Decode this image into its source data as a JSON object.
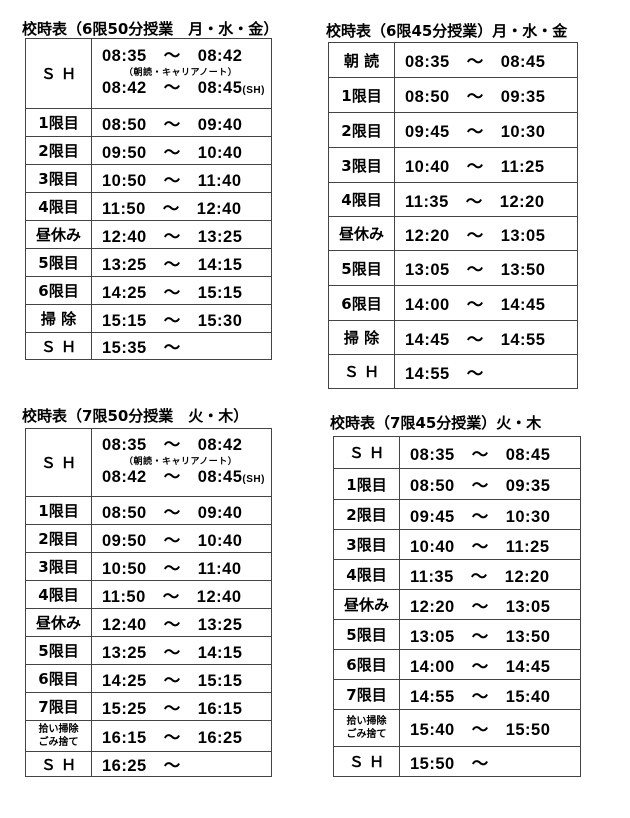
{
  "tables": [
    {
      "title": "校時表（6限50分授業　月・水・金）",
      "sh": {
        "label": "Ｓ Ｈ",
        "time1": "08:35　～　08:42",
        "note": "（朝読・キャリアノート）",
        "time2": "08:42　～　08:45",
        "time2_suffix": "(SH)"
      },
      "rows": [
        {
          "label": "1限目",
          "time": "08:50　～　09:40"
        },
        {
          "label": "2限目",
          "time": "09:50　～　10:40"
        },
        {
          "label": "3限目",
          "time": "10:50　～　11:40"
        },
        {
          "label": "4限目",
          "time": "11:50　～　12:40"
        },
        {
          "label": "昼休み",
          "time": "12:40　～　13:25"
        },
        {
          "label": "5限目",
          "time": "13:25　～　14:15"
        },
        {
          "label": "6限目",
          "time": "14:25　～　15:15"
        },
        {
          "label": "掃 除",
          "time": "15:15　～　15:30"
        },
        {
          "label": "Ｓ Ｈ",
          "time": "15:35　～"
        }
      ]
    },
    {
      "title": "校時表（6限45分授業）月・水・金",
      "rows": [
        {
          "label": "朝 読",
          "time": "08:35　～　08:45"
        },
        {
          "label": "1限目",
          "time": "08:50　～　09:35"
        },
        {
          "label": "2限目",
          "time": "09:45　～　10:30"
        },
        {
          "label": "3限目",
          "time": "10:40　～　11:25"
        },
        {
          "label": "4限目",
          "time": "11:35　～　12:20"
        },
        {
          "label": "昼休み",
          "time": "12:20　～　13:05"
        },
        {
          "label": "5限目",
          "time": "13:05　～　13:50"
        },
        {
          "label": "6限目",
          "time": "14:00　～　14:45"
        },
        {
          "label": "掃 除",
          "time": "14:45　～　14:55"
        },
        {
          "label": "Ｓ Ｈ",
          "time": "14:55　～"
        }
      ]
    },
    {
      "title": "校時表（7限50分授業　火・木）",
      "sh": {
        "label": "Ｓ Ｈ",
        "time1": "08:35　～　08:42",
        "note": "（朝読・キャリアノート）",
        "time2": "08:42　～　08:45",
        "time2_suffix": "(SH)"
      },
      "rows": [
        {
          "label": "1限目",
          "time": "08:50　～　09:40"
        },
        {
          "label": "2限目",
          "time": "09:50　～　10:40"
        },
        {
          "label": "3限目",
          "time": "10:50　～　11:40"
        },
        {
          "label": "4限目",
          "time": "11:50　～　12:40"
        },
        {
          "label": "昼休み",
          "time": "12:40　～　13:25"
        },
        {
          "label": "5限目",
          "time": "13:25　～　14:15"
        },
        {
          "label": "6限目",
          "time": "14:25　～　15:15"
        },
        {
          "label": "7限目",
          "time": "15:25　～　16:15"
        },
        {
          "label": "拾い掃除",
          "label2": "ごみ捨て",
          "time": "16:15　～　16:25"
        },
        {
          "label": "Ｓ Ｈ",
          "time": "16:25　～"
        }
      ]
    },
    {
      "title": "校時表（7限45分授業）火・木",
      "rows": [
        {
          "label": "Ｓ Ｈ",
          "time": "08:35　～　08:45"
        },
        {
          "label": "1限目",
          "time": "08:50　～　09:35"
        },
        {
          "label": "2限目",
          "time": "09:45　～　10:30"
        },
        {
          "label": "3限目",
          "time": "10:40　～　11:25"
        },
        {
          "label": "4限目",
          "time": "11:35　～　12:20"
        },
        {
          "label": "昼休み",
          "time": "12:20　～　13:05"
        },
        {
          "label": "5限目",
          "time": "13:05　～　13:50"
        },
        {
          "label": "6限目",
          "time": "14:00　～　14:45"
        },
        {
          "label": "7限目",
          "time": "14:55　～　15:40"
        },
        {
          "label": "拾い掃除",
          "label2": "ごみ捨て",
          "time": "15:40　～　15:50"
        },
        {
          "label": "Ｓ Ｈ",
          "time": "15:50　～"
        }
      ]
    }
  ]
}
